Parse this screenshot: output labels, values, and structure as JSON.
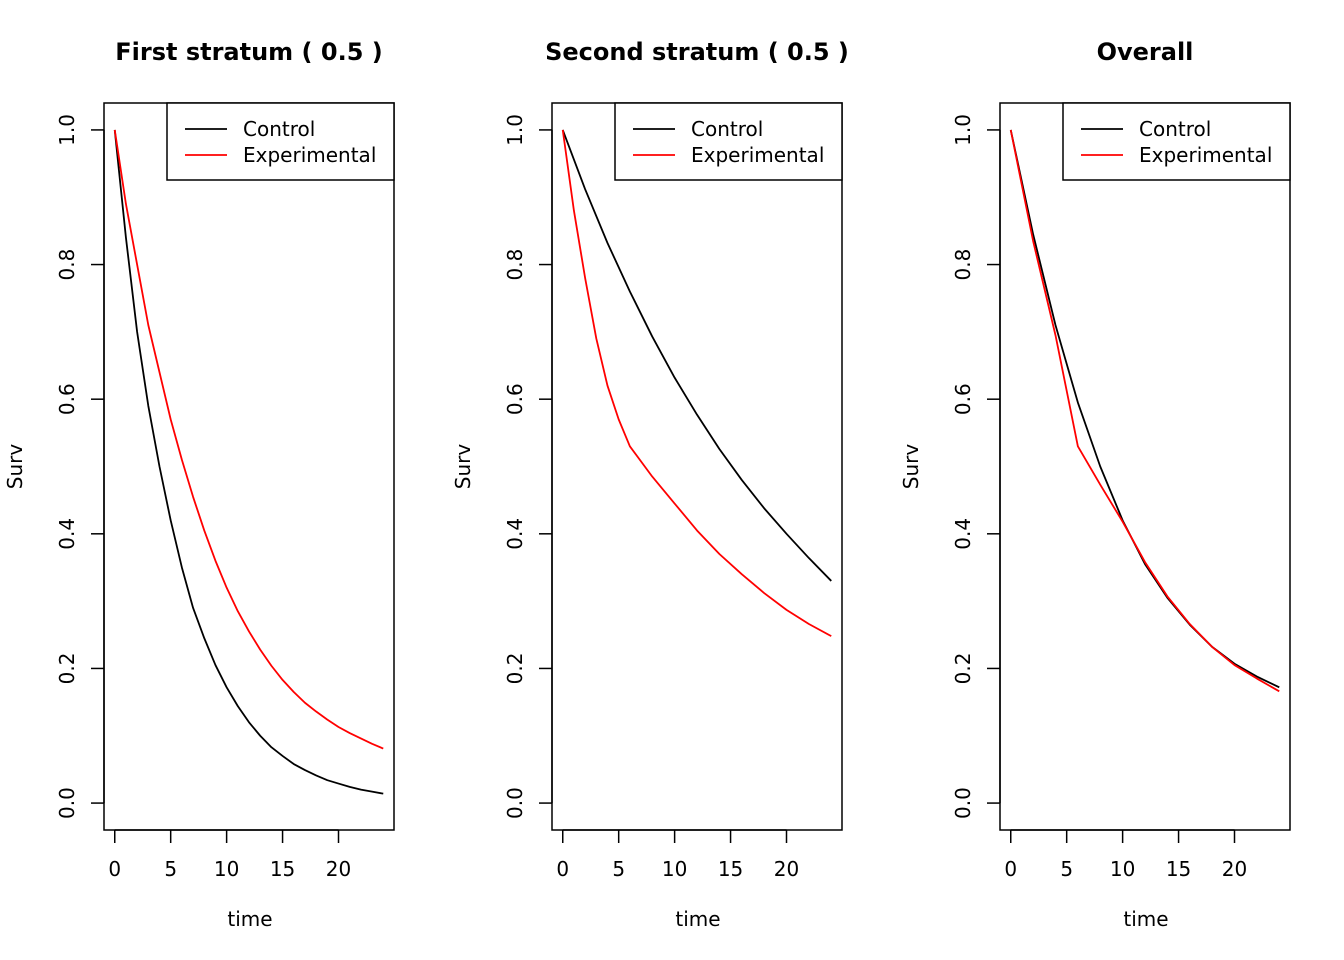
{
  "chart_data": [
    {
      "type": "line",
      "title": "First stratum ( 0.5 )",
      "xlabel": "time",
      "ylabel": "Surv",
      "xlim": [
        0,
        24
      ],
      "ylim": [
        0,
        1
      ],
      "xticks": [
        0,
        5,
        10,
        15,
        20
      ],
      "yticks": [
        "0.0",
        "0.2",
        "0.4",
        "0.6",
        "0.8",
        "1.0"
      ],
      "legend_position": "top-right",
      "series": [
        {
          "name": "Control",
          "color": "#000000",
          "x": [
            0,
            1,
            2,
            3,
            4,
            5,
            6,
            7,
            8,
            9,
            10,
            11,
            12,
            13,
            14,
            15,
            16,
            17,
            18,
            19,
            20,
            21,
            22,
            23,
            24
          ],
          "y": [
            1.0,
            0.84,
            0.7,
            0.59,
            0.5,
            0.42,
            0.35,
            0.29,
            0.245,
            0.205,
            0.172,
            0.144,
            0.12,
            0.1,
            0.083,
            0.07,
            0.058,
            0.049,
            0.041,
            0.034,
            0.029,
            0.024,
            0.02,
            0.017,
            0.014
          ]
        },
        {
          "name": "Experimental",
          "color": "#ff0000",
          "x": [
            0,
            1,
            2,
            3,
            4,
            5,
            6,
            7,
            8,
            9,
            10,
            11,
            12,
            13,
            14,
            15,
            16,
            17,
            18,
            19,
            20,
            21,
            22,
            23,
            24
          ],
          "y": [
            1.0,
            0.89,
            0.8,
            0.71,
            0.64,
            0.57,
            0.51,
            0.455,
            0.405,
            0.36,
            0.32,
            0.285,
            0.255,
            0.228,
            0.204,
            0.183,
            0.165,
            0.149,
            0.136,
            0.124,
            0.113,
            0.104,
            0.096,
            0.088,
            0.081
          ]
        }
      ]
    },
    {
      "type": "line",
      "title": "Second stratum ( 0.5 )",
      "xlabel": "time",
      "ylabel": "Surv",
      "xlim": [
        0,
        24
      ],
      "ylim": [
        0,
        1
      ],
      "xticks": [
        0,
        5,
        10,
        15,
        20
      ],
      "yticks": [
        "0.0",
        "0.2",
        "0.4",
        "0.6",
        "0.8",
        "1.0"
      ],
      "legend_position": "top-right",
      "series": [
        {
          "name": "Control",
          "color": "#000000",
          "x": [
            0,
            2,
            4,
            6,
            8,
            10,
            12,
            14,
            16,
            18,
            20,
            22,
            24
          ],
          "y": [
            1.0,
            0.912,
            0.832,
            0.76,
            0.693,
            0.632,
            0.577,
            0.526,
            0.48,
            0.438,
            0.4,
            0.364,
            0.33
          ]
        },
        {
          "name": "Experimental",
          "color": "#ff0000",
          "x": [
            0,
            1,
            2,
            3,
            4,
            5,
            6,
            8,
            10,
            12,
            14,
            16,
            18,
            20,
            22,
            24
          ],
          "y": [
            1.0,
            0.88,
            0.78,
            0.69,
            0.62,
            0.57,
            0.53,
            0.485,
            0.445,
            0.405,
            0.37,
            0.34,
            0.312,
            0.287,
            0.266,
            0.248
          ]
        }
      ]
    },
    {
      "type": "line",
      "title": "Overall",
      "xlabel": "time",
      "ylabel": "Surv",
      "xlim": [
        0,
        24
      ],
      "ylim": [
        0,
        1
      ],
      "xticks": [
        0,
        5,
        10,
        15,
        20
      ],
      "yticks": [
        "0.0",
        "0.2",
        "0.4",
        "0.6",
        "0.8",
        "1.0"
      ],
      "legend_position": "top-right",
      "series": [
        {
          "name": "Control",
          "color": "#000000",
          "x": [
            0,
            2,
            4,
            6,
            8,
            10,
            12,
            14,
            16,
            18,
            20,
            22,
            24
          ],
          "y": [
            1.0,
            0.845,
            0.71,
            0.595,
            0.5,
            0.42,
            0.355,
            0.305,
            0.265,
            0.232,
            0.207,
            0.188,
            0.172
          ]
        },
        {
          "name": "Experimental",
          "color": "#ff0000",
          "x": [
            0,
            2,
            4,
            6,
            8,
            10,
            12,
            14,
            16,
            18,
            20,
            22,
            24
          ],
          "y": [
            1.0,
            0.835,
            0.695,
            0.53,
            0.473,
            0.418,
            0.358,
            0.307,
            0.266,
            0.232,
            0.205,
            0.185,
            0.166
          ]
        }
      ]
    }
  ]
}
